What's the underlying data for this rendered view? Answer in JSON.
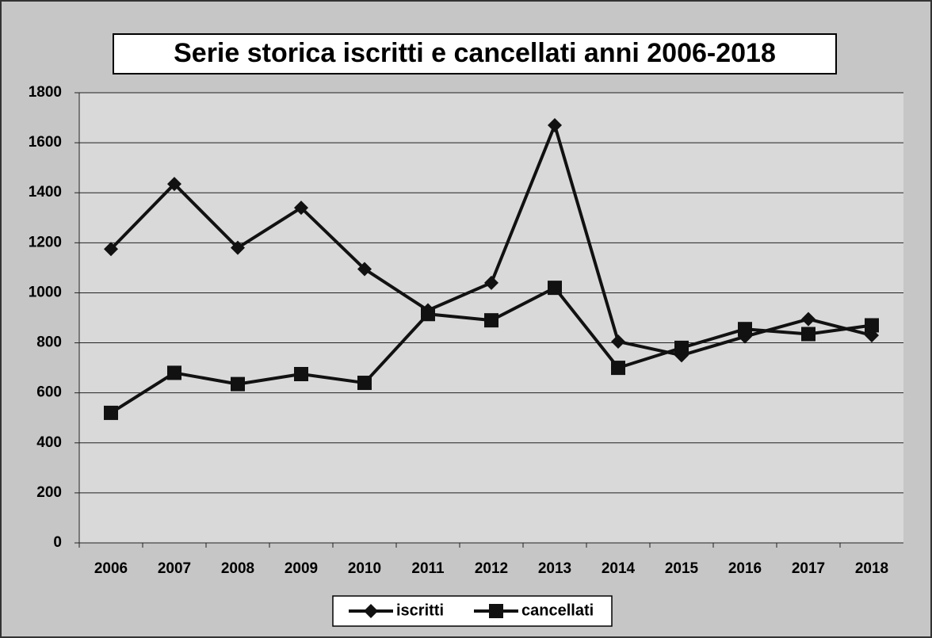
{
  "chart_data": {
    "type": "line",
    "title": "Serie storica iscritti e cancellati anni 2006-2018",
    "categories": [
      "2006",
      "2007",
      "2008",
      "2009",
      "2010",
      "2011",
      "2012",
      "2013",
      "2014",
      "2015",
      "2016",
      "2017",
      "2018"
    ],
    "series": [
      {
        "name": "iscritti",
        "color": "#111111",
        "values": [
          1175,
          1435,
          1180,
          1340,
          1095,
          930,
          1040,
          1670,
          805,
          750,
          825,
          895,
          830
        ]
      },
      {
        "name": "cancellati",
        "color": "#111111",
        "values": [
          520,
          680,
          635,
          675,
          640,
          915,
          890,
          1020,
          700,
          780,
          855,
          835,
          870
        ]
      }
    ],
    "ylim": [
      0,
      1800
    ],
    "yticks": [
      0,
      200,
      400,
      600,
      800,
      1000,
      1200,
      1400,
      1600,
      1800
    ],
    "grid": true
  }
}
